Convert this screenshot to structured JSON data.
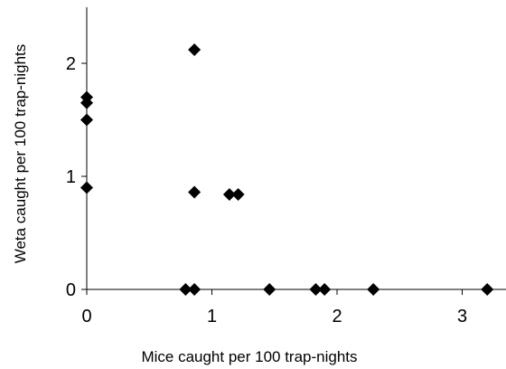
{
  "chart_data": {
    "type": "scatter",
    "title": "",
    "xlabel": "Mice caught per 100 trap-nights",
    "ylabel": "Weta caught per 100 trap-nights",
    "xlim": [
      0,
      3.35
    ],
    "ylim": [
      0,
      2.5
    ],
    "x_ticks": [
      0,
      1,
      2,
      3
    ],
    "x_tick_labels": [
      "0",
      "1",
      "2",
      "3"
    ],
    "y_ticks": [
      0,
      1,
      2
    ],
    "y_tick_labels": [
      "0",
      "1",
      "2"
    ],
    "grid": false,
    "legend": "none",
    "marker": "diamond",
    "marker_color": "#000000",
    "points": [
      {
        "x": 0.0,
        "y": 1.7
      },
      {
        "x": 0.0,
        "y": 1.65
      },
      {
        "x": 0.0,
        "y": 1.5
      },
      {
        "x": 0.0,
        "y": 0.9
      },
      {
        "x": 0.86,
        "y": 2.12
      },
      {
        "x": 0.86,
        "y": 0.86
      },
      {
        "x": 1.14,
        "y": 0.84
      },
      {
        "x": 1.21,
        "y": 0.84
      },
      {
        "x": 0.79,
        "y": 0.0
      },
      {
        "x": 0.86,
        "y": 0.0
      },
      {
        "x": 1.46,
        "y": 0.0
      },
      {
        "x": 1.83,
        "y": 0.0
      },
      {
        "x": 1.9,
        "y": 0.0
      },
      {
        "x": 2.29,
        "y": 0.0
      },
      {
        "x": 3.2,
        "y": 0.0
      }
    ]
  }
}
